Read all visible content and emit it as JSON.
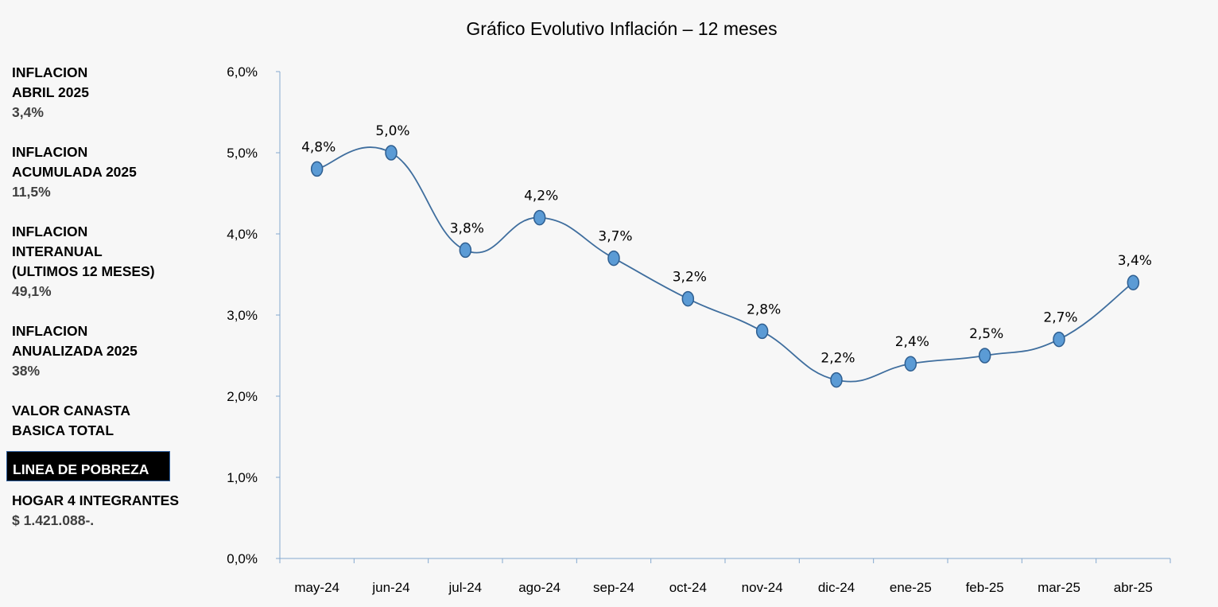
{
  "side_panel": {
    "blocks": [
      {
        "label": "INFLACION\nABRIL 2025",
        "value": "3,4%"
      },
      {
        "label": "INFLACION\nACUMULADA 2025",
        "value": "11,5%"
      },
      {
        "label": "INFLACION\nINTERANUAL\n(ULTIMOS 12 MESES)",
        "value": "49,1%"
      },
      {
        "label": "INFLACION\nANUALIZADA 2025",
        "value": "38%"
      }
    ],
    "canasta_label": "VALOR CANASTA\nBASICA TOTAL",
    "poverty_label": "LINEA DE POBREZA",
    "hogar_label": "HOGAR 4 INTEGRANTES",
    "hogar_value": "$ 1.421.088-."
  },
  "colors": {
    "line": "#3f6e9e",
    "marker": "#5b9bd5",
    "axis": "#85a9cf",
    "background": "#f7f7f7"
  },
  "chart_data": {
    "type": "line",
    "title": "Gráfico Evolutivo Inflación – 12 meses",
    "xlabel": "",
    "ylabel": "",
    "categories": [
      "may-24",
      "jun-24",
      "jul-24",
      "ago-24",
      "sep-24",
      "oct-24",
      "nov-24",
      "dic-24",
      "ene-25",
      "feb-25",
      "mar-25",
      "abr-25"
    ],
    "series": [
      {
        "values": [
          4.8,
          5.0,
          3.8,
          4.2,
          3.7,
          3.2,
          2.8,
          2.2,
          2.4,
          2.5,
          2.7,
          3.4
        ],
        "labels": [
          "4,8%",
          "5,0%",
          "3,8%",
          "4,2%",
          "3,7%",
          "3,2%",
          "2,8%",
          "2,2%",
          "2,4%",
          "2,5%",
          "2,7%",
          "3,4%"
        ]
      }
    ],
    "yticks": [
      "0,0%",
      "1,0%",
      "2,0%",
      "3,0%",
      "4,0%",
      "5,0%",
      "6,0%"
    ],
    "ylim": [
      0,
      6
    ],
    "grid": false,
    "smooth": true,
    "legend": "none"
  }
}
